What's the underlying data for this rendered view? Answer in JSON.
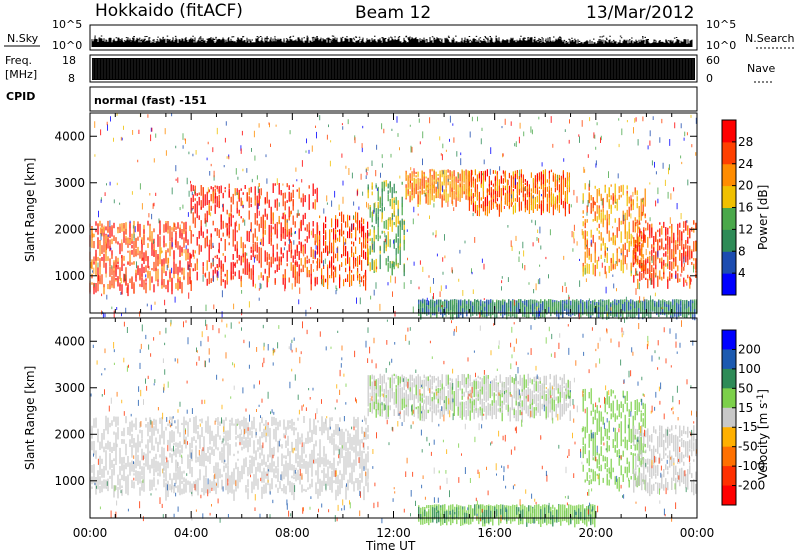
{
  "header": {
    "station": "Hokkaido (fitACF)",
    "beam": "Beam 12",
    "date": "13/Mar/2012"
  },
  "noise_panel": {
    "left_label": "N.Sky",
    "right_label": "N.Search",
    "left_ticks": [
      "10^5",
      "10^0"
    ],
    "right_ticks": [
      "10^5",
      "10^0"
    ]
  },
  "freq_panel": {
    "left_label_1": "Freq.",
    "left_label_2": "[MHz]",
    "right_label": "Nave",
    "left_ticks": [
      "18",
      "8"
    ],
    "right_ticks": [
      "60",
      "0"
    ]
  },
  "cpid_panel": {
    "label": "CPID",
    "value": "normal (fast) -151"
  },
  "colors": {
    "power": [
      "#0000ff",
      "#1c4cb0",
      "#2e8b57",
      "#4aa84a",
      "#f0c000",
      "#ff8c00",
      "#ff4000",
      "#ff0000"
    ],
    "velocity": [
      "#0000ff",
      "#1c5ab0",
      "#2e8b57",
      "#7cd04a",
      "#c8c8c8",
      "#ffb000",
      "#ff7000",
      "#ff3000",
      "#ff0000"
    ]
  },
  "chart_data": [
    {
      "type": "heatmap",
      "title": "",
      "xlabel": "",
      "ylabel": "Slant Range [km]",
      "x_ticks": [
        "00:00",
        "04:00",
        "08:00",
        "12:00",
        "16:00",
        "20:00",
        "00:00"
      ],
      "y_ticks": [
        1000,
        2000,
        3000,
        4000
      ],
      "xlim_hours": [
        0,
        24
      ],
      "ylim_km": [
        200,
        4500
      ],
      "colorbar": {
        "label": "Power [dB]",
        "ticks": [
          4,
          8,
          12,
          16,
          20,
          24,
          28
        ],
        "range": [
          0,
          32
        ]
      },
      "regions": [
        {
          "t_start": 0.0,
          "t_end": 4.0,
          "r_min": 800,
          "r_max": 2200,
          "value": 26
        },
        {
          "t_start": 4.0,
          "t_end": 9.0,
          "r_min": 900,
          "r_max": 3000,
          "value": 28
        },
        {
          "t_start": 9.0,
          "t_end": 11.0,
          "r_min": 900,
          "r_max": 2400,
          "value": 26
        },
        {
          "t_start": 11.0,
          "t_end": 12.5,
          "r_min": 1200,
          "r_max": 3100,
          "value": 14
        },
        {
          "t_start": 12.5,
          "t_end": 15.0,
          "r_min": 2700,
          "r_max": 3300,
          "value": 22
        },
        {
          "t_start": 15.0,
          "t_end": 19.0,
          "r_min": 2500,
          "r_max": 3300,
          "value": 24
        },
        {
          "t_start": 13.0,
          "t_end": 24.0,
          "r_min": 300,
          "r_max": 500,
          "value": 10
        },
        {
          "t_start": 19.5,
          "t_end": 22.0,
          "r_min": 1200,
          "r_max": 3000,
          "value": 22
        },
        {
          "t_start": 21.5,
          "t_end": 24.0,
          "r_min": 900,
          "r_max": 2200,
          "value": 26
        }
      ]
    },
    {
      "type": "heatmap",
      "title": "",
      "xlabel": "Time UT",
      "ylabel": "Slant Range [km]",
      "x_ticks": [
        "00:00",
        "04:00",
        "08:00",
        "12:00",
        "16:00",
        "20:00",
        "00:00"
      ],
      "y_ticks": [
        1000,
        2000,
        3000,
        4000
      ],
      "xlim_hours": [
        0,
        24
      ],
      "ylim_km": [
        200,
        4500
      ],
      "colorbar": {
        "label": "Velocity [m s",
        "label_sup": "-1",
        "label_end": "]",
        "ticks": [
          200,
          100,
          50,
          15,
          -15,
          -50,
          -100,
          -200
        ]
      },
      "regions": [
        {
          "t_start": 0.0,
          "t_end": 11.0,
          "r_min": 800,
          "r_max": 2400,
          "value": 0
        },
        {
          "t_start": 11.0,
          "t_end": 19.0,
          "r_min": 2500,
          "r_max": 3300,
          "value": 5
        },
        {
          "t_start": 13.0,
          "t_end": 20.0,
          "r_min": 250,
          "r_max": 500,
          "value": 40
        },
        {
          "t_start": 19.5,
          "t_end": 22.0,
          "r_min": 1000,
          "r_max": 3000,
          "value": 30
        },
        {
          "t_start": 21.5,
          "t_end": 24.0,
          "r_min": 900,
          "r_max": 2200,
          "value": 0
        }
      ]
    }
  ]
}
